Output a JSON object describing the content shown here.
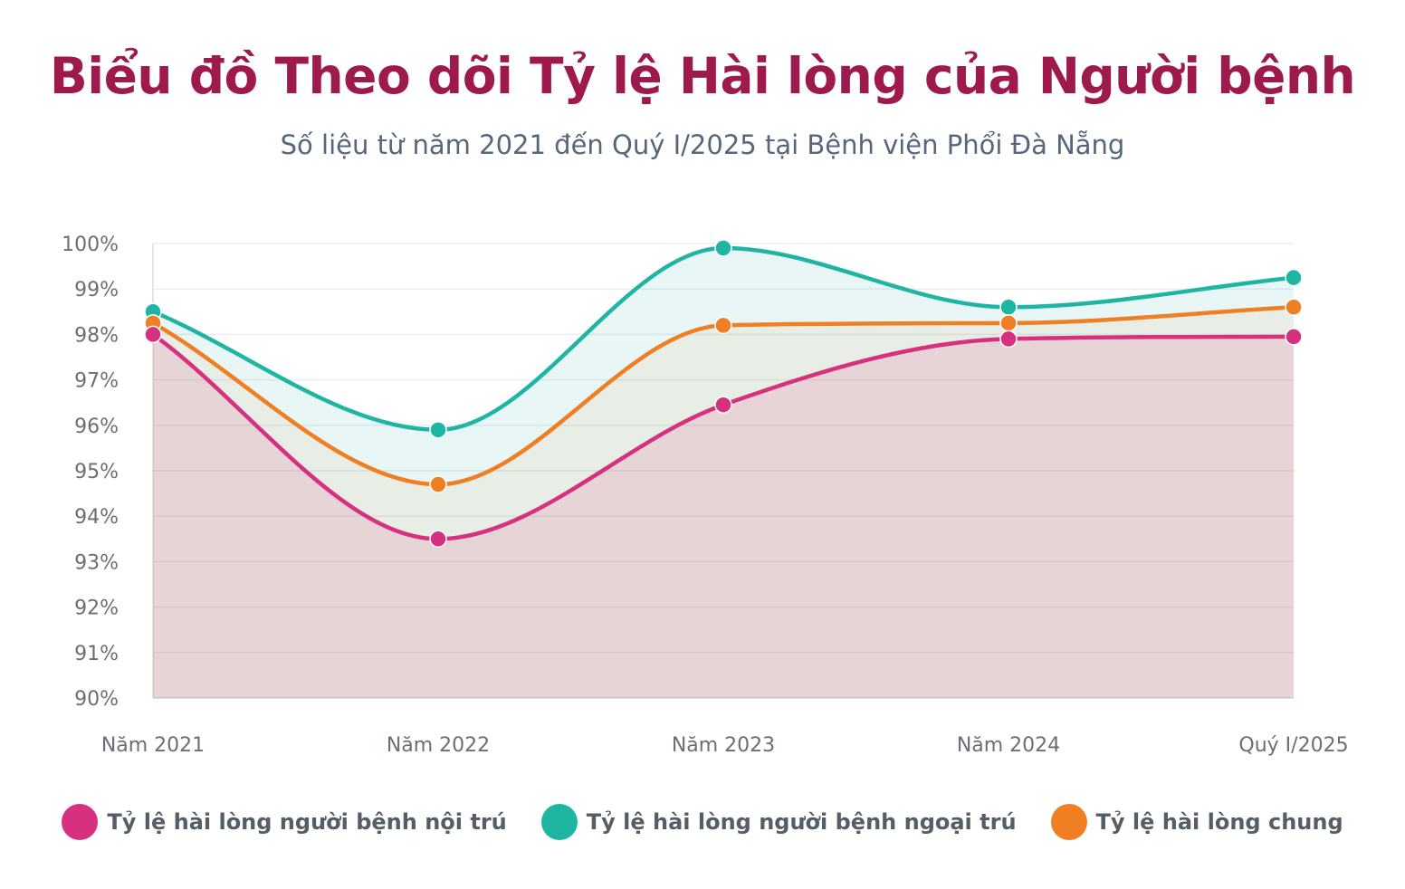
{
  "title": "Biểu đồ Theo dõi Tỷ lệ Hài lòng của Người bệnh",
  "subtitle": "Số liệu từ năm 2021 đến Quý I/2025 tại Bệnh viện Phổi Đà Nẵng",
  "chart_data": {
    "type": "line",
    "categories": [
      "Năm 2021",
      "Năm 2022",
      "Năm 2023",
      "Năm 2024",
      "Quý I/2025"
    ],
    "series": [
      {
        "name": "Tỷ lệ hài lòng người bệnh nội trú",
        "color": "#d6307f",
        "values": [
          98.0,
          93.5,
          96.45,
          97.9,
          97.95
        ]
      },
      {
        "name": "Tỷ lệ hài lòng người bệnh ngoại trú",
        "color": "#1fb5a3",
        "values": [
          98.5,
          95.9,
          99.9,
          98.6,
          99.25
        ]
      },
      {
        "name": "Tỷ lệ hài lòng chung",
        "color": "#ef7f22",
        "values": [
          98.25,
          94.7,
          98.2,
          98.25,
          98.6
        ]
      }
    ],
    "ylim": [
      90,
      100
    ],
    "yticks": [
      "90%",
      "91%",
      "92%",
      "93%",
      "94%",
      "95%",
      "96%",
      "97%",
      "98%",
      "99%",
      "100%"
    ],
    "grid": true,
    "area_fill": true,
    "legend_position": "bottom"
  }
}
